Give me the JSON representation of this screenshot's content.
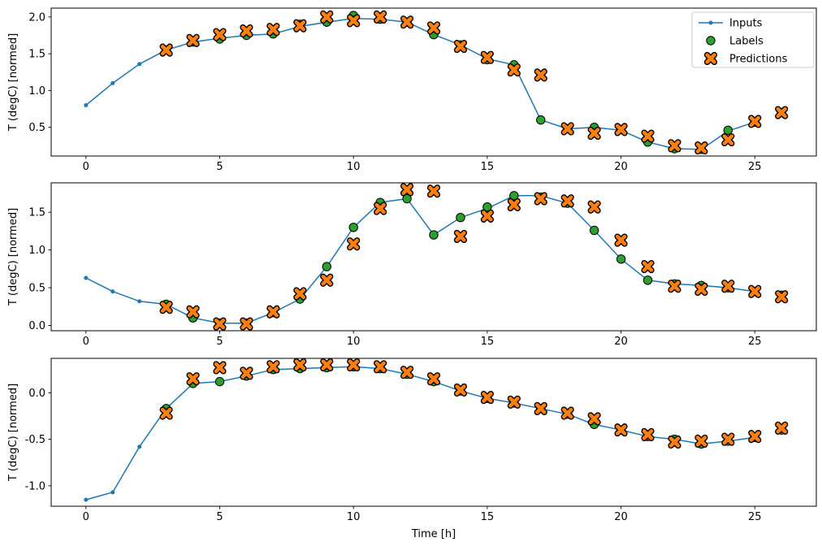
{
  "figure": {
    "xlabel": "Time [h]",
    "background": "#ffffff"
  },
  "legend": {
    "labels": [
      "Inputs",
      "Labels",
      "Predictions"
    ],
    "position": "upper right"
  },
  "colors": {
    "inputs": "#1f77b4",
    "labels": "#2ca02c",
    "predictions": "#ff7f0e",
    "marker_edge": "#000000",
    "legend_border": "#cccccc",
    "spine": "#000000"
  },
  "chart_data": [
    {
      "type": "line",
      "title": "",
      "xlabel": "",
      "ylabel": "T (degC) [normed]",
      "grid": false,
      "xlim": [
        -1.3,
        27.3
      ],
      "ylim": [
        0.11,
        2.12
      ],
      "xticks": [
        0,
        5,
        10,
        15,
        20,
        25
      ],
      "yticks": [
        0.5,
        1.0,
        1.5,
        2.0
      ],
      "series": [
        {
          "name": "Inputs",
          "style": "line-dot",
          "x": [
            0,
            1,
            2,
            3,
            4,
            5,
            6,
            7,
            8,
            9,
            10,
            11,
            12,
            13,
            14,
            15,
            16,
            17,
            18,
            19,
            20,
            21,
            22,
            23,
            24,
            25
          ],
          "y": [
            0.8,
            1.1,
            1.36,
            1.55,
            1.66,
            1.71,
            1.75,
            1.77,
            1.87,
            1.93,
            1.98,
            1.97,
            1.93,
            1.76,
            1.62,
            1.43,
            1.35,
            0.6,
            0.48,
            0.5,
            0.46,
            0.3,
            0.21,
            0.2,
            0.45,
            0.57
          ]
        },
        {
          "name": "Labels",
          "style": "scatter-circle",
          "x": [
            3,
            4,
            5,
            6,
            7,
            8,
            9,
            10,
            11,
            12,
            13,
            14,
            15,
            16,
            17,
            18,
            19,
            20,
            21,
            22,
            23,
            24,
            25,
            26
          ],
          "y": [
            1.55,
            1.66,
            1.7,
            1.75,
            1.77,
            1.9,
            1.93,
            2.02,
            1.97,
            1.93,
            1.76,
            1.62,
            1.42,
            1.35,
            0.6,
            0.48,
            0.5,
            0.47,
            0.3,
            0.21,
            0.2,
            0.46,
            0.57,
            0.7
          ]
        },
        {
          "name": "Predictions",
          "style": "scatter-x",
          "x": [
            3,
            4,
            5,
            6,
            7,
            8,
            9,
            10,
            11,
            12,
            13,
            14,
            15,
            16,
            17,
            18,
            19,
            20,
            21,
            22,
            23,
            24,
            25,
            26
          ],
          "y": [
            1.55,
            1.68,
            1.76,
            1.81,
            1.83,
            1.88,
            2.0,
            1.95,
            2.0,
            1.93,
            1.85,
            1.6,
            1.45,
            1.28,
            1.21,
            0.48,
            0.42,
            0.47,
            0.38,
            0.25,
            0.22,
            0.33,
            0.58,
            0.7
          ]
        }
      ]
    },
    {
      "type": "line",
      "title": "",
      "xlabel": "",
      "ylabel": "T (degC) [normed]",
      "grid": false,
      "xlim": [
        -1.3,
        27.3
      ],
      "ylim": [
        -0.07,
        1.89
      ],
      "xticks": [
        0,
        5,
        10,
        15,
        20,
        25
      ],
      "yticks": [
        0.0,
        0.5,
        1.0,
        1.5
      ],
      "series": [
        {
          "name": "Inputs",
          "style": "line-dot",
          "x": [
            0,
            1,
            2,
            3,
            4,
            5,
            6,
            7,
            8,
            9,
            10,
            11,
            12,
            13,
            14,
            15,
            16,
            17,
            18,
            19,
            20,
            21,
            22,
            23,
            24,
            25
          ],
          "y": [
            0.63,
            0.45,
            0.32,
            0.28,
            0.1,
            0.03,
            0.03,
            0.17,
            0.35,
            0.78,
            1.3,
            1.63,
            1.68,
            1.2,
            1.43,
            1.55,
            1.72,
            1.72,
            1.62,
            1.26,
            0.88,
            0.6,
            0.55,
            0.53,
            0.5,
            0.45
          ]
        },
        {
          "name": "Labels",
          "style": "scatter-circle",
          "x": [
            3,
            4,
            5,
            6,
            7,
            8,
            9,
            10,
            11,
            12,
            13,
            14,
            15,
            16,
            17,
            18,
            19,
            20,
            21,
            22,
            23,
            24,
            25,
            26
          ],
          "y": [
            0.28,
            0.1,
            0.03,
            0.03,
            0.17,
            0.35,
            0.78,
            1.3,
            1.63,
            1.68,
            1.2,
            1.43,
            1.57,
            1.72,
            1.7,
            1.62,
            1.26,
            0.88,
            0.6,
            0.55,
            0.53,
            0.5,
            0.45,
            0.4
          ]
        },
        {
          "name": "Predictions",
          "style": "scatter-x",
          "x": [
            3,
            4,
            5,
            6,
            7,
            8,
            9,
            10,
            11,
            12,
            13,
            14,
            15,
            16,
            17,
            18,
            19,
            20,
            21,
            22,
            23,
            24,
            25,
            26
          ],
          "y": [
            0.24,
            0.18,
            0.02,
            0.02,
            0.18,
            0.42,
            0.6,
            1.08,
            1.55,
            1.8,
            1.78,
            1.18,
            1.45,
            1.6,
            1.68,
            1.65,
            1.57,
            1.13,
            0.78,
            0.52,
            0.48,
            0.52,
            0.45,
            0.38
          ]
        }
      ]
    },
    {
      "type": "line",
      "title": "",
      "xlabel": "Time [h]",
      "ylabel": "T (degC) [normed]",
      "grid": false,
      "xlim": [
        -1.3,
        27.3
      ],
      "ylim": [
        -1.22,
        0.37
      ],
      "xticks": [
        0,
        5,
        10,
        15,
        20,
        25
      ],
      "yticks": [
        -1.0,
        -0.5,
        0.0
      ],
      "series": [
        {
          "name": "Inputs",
          "style": "line-dot",
          "x": [
            0,
            1,
            2,
            3,
            4,
            5,
            6,
            7,
            8,
            9,
            10,
            11,
            12,
            13,
            14,
            15,
            16,
            17,
            18,
            19,
            20,
            21,
            22,
            23,
            24,
            25
          ],
          "y": [
            -1.15,
            -1.07,
            -0.58,
            -0.17,
            0.1,
            0.12,
            0.18,
            0.25,
            0.26,
            0.27,
            0.28,
            0.26,
            0.2,
            0.12,
            0.02,
            -0.06,
            -0.11,
            -0.17,
            -0.23,
            -0.34,
            -0.4,
            -0.47,
            -0.5,
            -0.55,
            -0.52,
            -0.48
          ]
        },
        {
          "name": "Labels",
          "style": "scatter-circle",
          "x": [
            3,
            4,
            5,
            6,
            7,
            8,
            9,
            10,
            11,
            12,
            13,
            14,
            15,
            16,
            17,
            18,
            19,
            20,
            21,
            22,
            23,
            24,
            25,
            26
          ],
          "y": [
            -0.17,
            0.1,
            0.12,
            0.18,
            0.25,
            0.26,
            0.27,
            0.28,
            0.26,
            0.2,
            0.12,
            0.02,
            -0.06,
            -0.11,
            -0.17,
            -0.23,
            -0.34,
            -0.4,
            -0.47,
            -0.5,
            -0.55,
            -0.52,
            -0.48,
            -0.4
          ]
        },
        {
          "name": "Predictions",
          "style": "scatter-x",
          "x": [
            3,
            4,
            5,
            6,
            7,
            8,
            9,
            10,
            11,
            12,
            13,
            14,
            15,
            16,
            17,
            18,
            19,
            20,
            21,
            22,
            23,
            24,
            25,
            26
          ],
          "y": [
            -0.22,
            0.15,
            0.27,
            0.21,
            0.28,
            0.3,
            0.3,
            0.3,
            0.28,
            0.22,
            0.15,
            0.03,
            -0.05,
            -0.1,
            -0.17,
            -0.22,
            -0.28,
            -0.4,
            -0.45,
            -0.53,
            -0.52,
            -0.5,
            -0.47,
            -0.38
          ]
        }
      ]
    }
  ]
}
